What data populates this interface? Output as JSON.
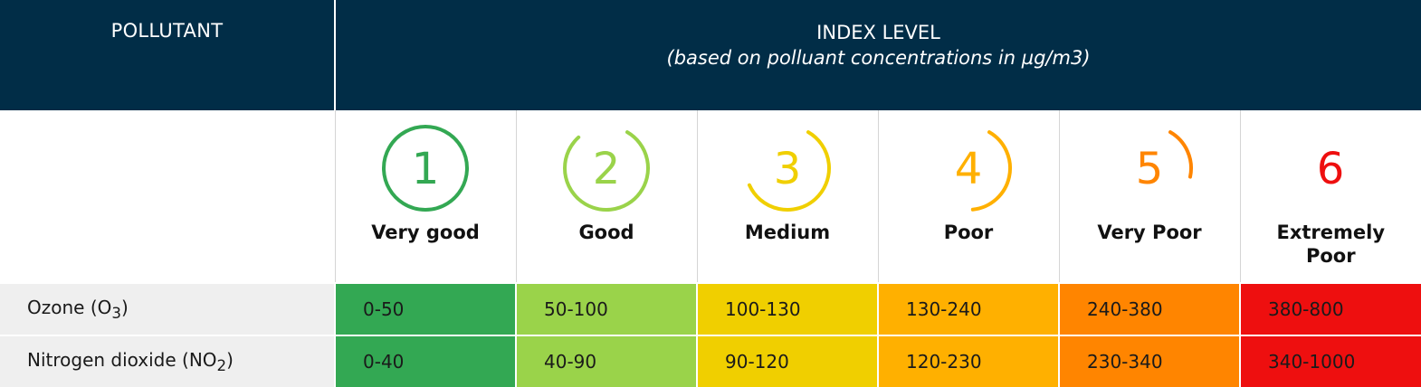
{
  "header": {
    "pollutant": "POLLUTANT",
    "index_level": "INDEX LEVEL",
    "index_sub": "(based on polluant concentrations in µg/m3)"
  },
  "levels": [
    {
      "number": "1",
      "label": "Very good",
      "color": "#33a853",
      "ring_fraction": 1.0
    },
    {
      "number": "2",
      "label": "Good",
      "color": "#9ad34a",
      "ring_fraction": 0.8
    },
    {
      "number": "3",
      "label": "Medium",
      "color": "#f0cf00",
      "ring_fraction": 0.6
    },
    {
      "number": "4",
      "label": "Poor",
      "color": "#ffb000",
      "ring_fraction": 0.4
    },
    {
      "number": "5",
      "label": "Very Poor",
      "color": "#ff8500",
      "ring_fraction": 0.2
    },
    {
      "number": "6",
      "label": "Extremely Poor",
      "color": "#ee0f0f",
      "ring_fraction": 0.0
    }
  ],
  "rows": [
    {
      "name": "Ozone (O",
      "sub": "3",
      "close": ")",
      "ranges": [
        "0-50",
        "50-100",
        "100-130",
        "130-240",
        "240-380",
        "380-800"
      ]
    },
    {
      "name": "Nitrogen dioxide (NO",
      "sub": "2",
      "close": ")",
      "ranges": [
        "0-40",
        "40-90",
        "90-120",
        "120-230",
        "230-340",
        "340-1000"
      ]
    }
  ]
}
